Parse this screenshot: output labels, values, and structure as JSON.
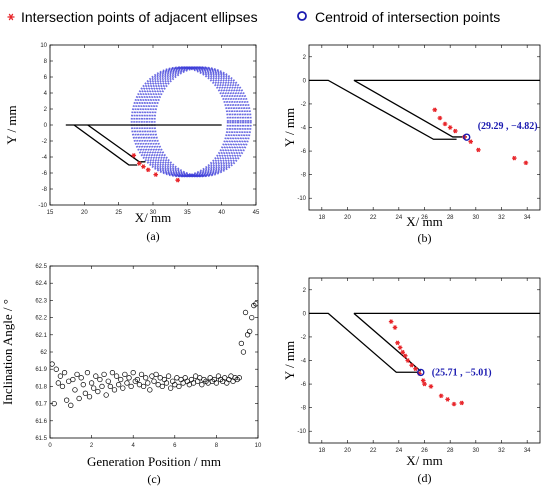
{
  "legend": {
    "left": {
      "marker": "*",
      "label": "Intersection points of adjacent ellipses",
      "color": "#e8262b"
    },
    "right": {
      "marker": "o",
      "label": "Centroid of intersection points",
      "color": "#1a1ab0"
    }
  },
  "colors": {
    "outline": "#000000",
    "ellipse": "#3c3cd8",
    "points": "#e8262b",
    "centroid": "#1a1ab0"
  },
  "chart_data": [
    {
      "id": "a",
      "type": "scatter",
      "panel_label": "(a)",
      "xlabel": "X/ mm",
      "ylabel": "Y / mm",
      "xlim": [
        15,
        45
      ],
      "ylim": [
        -10,
        10
      ],
      "xticks": [
        15,
        20,
        25,
        30,
        35,
        40,
        45
      ],
      "yticks": [
        -10,
        -8,
        -6,
        -4,
        -2,
        0,
        2,
        4,
        6,
        8,
        10
      ],
      "outline": [
        [
          {
            "x": 17.3,
            "y": 0
          },
          {
            "x": 40,
            "y": 0
          }
        ],
        [
          {
            "x": 18.5,
            "y": 0
          },
          {
            "x": 26.5,
            "y": -5
          },
          {
            "x": 27.7,
            "y": -5
          }
        ],
        [
          {
            "x": 20.5,
            "y": 0
          },
          {
            "x": 28,
            "y": -4.6
          },
          {
            "x": 28.9,
            "y": -4.6
          }
        ]
      ],
      "ellipse_family": {
        "count": 10,
        "center_x_start": 33.9,
        "center_x_step": 0.37,
        "center_y": 0.4,
        "rx": 7,
        "ry": 6.8
      },
      "points": [
        {
          "x": 27.2,
          "y": -3.8
        },
        {
          "x": 28.0,
          "y": -4.8
        },
        {
          "x": 28.6,
          "y": -5.2
        },
        {
          "x": 29.3,
          "y": -5.6
        },
        {
          "x": 30.4,
          "y": -6.2
        },
        {
          "x": 33.6,
          "y": -6.9
        }
      ]
    },
    {
      "id": "b",
      "type": "scatter",
      "panel_label": "(b)",
      "xlabel": "X/ mm",
      "ylabel": "Y / mm",
      "xlim": [
        17,
        35
      ],
      "ylim": [
        -11,
        3
      ],
      "xticks": [
        18,
        20,
        22,
        24,
        26,
        28,
        30,
        32,
        34
      ],
      "yticks": [
        -10,
        -8,
        -6,
        -4,
        -2,
        0,
        2
      ],
      "outline": [
        [
          {
            "x": 17,
            "y": 0
          },
          {
            "x": 18.5,
            "y": 0
          },
          {
            "x": 26.7,
            "y": -5
          },
          {
            "x": 28.5,
            "y": -5
          }
        ],
        [
          {
            "x": 20.5,
            "y": 0
          },
          {
            "x": 35,
            "y": 0
          }
        ],
        [
          {
            "x": 20.5,
            "y": 0
          },
          {
            "x": 28.2,
            "y": -4.8
          },
          {
            "x": 29.3,
            "y": -4.8
          }
        ]
      ],
      "points": [
        {
          "x": 26.8,
          "y": -2.5
        },
        {
          "x": 27.2,
          "y": -3.2
        },
        {
          "x": 27.6,
          "y": -3.7
        },
        {
          "x": 28.0,
          "y": -4.0
        },
        {
          "x": 28.4,
          "y": -4.3
        },
        {
          "x": 29.1,
          "y": -4.8
        },
        {
          "x": 29.6,
          "y": -5.2
        },
        {
          "x": 30.2,
          "y": -5.9
        },
        {
          "x": 33.0,
          "y": -6.6
        },
        {
          "x": 33.9,
          "y": -7.0
        }
      ],
      "centroid": {
        "x": 29.29,
        "y": -4.82
      },
      "annotation": "(29.29 , −4.82)"
    },
    {
      "id": "c",
      "type": "scatter",
      "panel_label": "(c)",
      "xlabel": "Generation Position / mm",
      "ylabel": "Inclination Angle / °",
      "xlim": [
        0,
        10
      ],
      "ylim": [
        61.5,
        62.5
      ],
      "xticks": [
        0,
        2,
        4,
        6,
        8,
        10
      ],
      "yticks": [
        61.5,
        61.6,
        61.7,
        61.8,
        61.9,
        62,
        62.1,
        62.2,
        62.3,
        62.4,
        62.5
      ],
      "x": [
        0.1,
        0.2,
        0.3,
        0.4,
        0.5,
        0.6,
        0.7,
        0.8,
        0.9,
        1.0,
        1.1,
        1.2,
        1.3,
        1.4,
        1.5,
        1.6,
        1.7,
        1.8,
        1.9,
        2.0,
        2.1,
        2.2,
        2.3,
        2.4,
        2.5,
        2.6,
        2.7,
        2.8,
        2.9,
        3.0,
        3.1,
        3.2,
        3.3,
        3.4,
        3.5,
        3.6,
        3.7,
        3.8,
        3.9,
        4.0,
        4.1,
        4.2,
        4.3,
        4.4,
        4.5,
        4.6,
        4.7,
        4.8,
        4.9,
        5.0,
        5.1,
        5.2,
        5.3,
        5.4,
        5.5,
        5.6,
        5.7,
        5.8,
        5.9,
        6.0,
        6.1,
        6.2,
        6.3,
        6.4,
        6.5,
        6.6,
        6.7,
        6.8,
        6.9,
        7.0,
        7.1,
        7.2,
        7.3,
        7.4,
        7.5,
        7.6,
        7.7,
        7.8,
        7.9,
        8.0,
        8.1,
        8.2,
        8.3,
        8.4,
        8.5,
        8.6,
        8.7,
        8.8,
        8.9,
        9.0,
        9.1,
        9.2,
        9.3,
        9.4,
        9.5,
        9.6,
        9.7,
        9.8,
        9.9
      ],
      "y": [
        61.93,
        61.7,
        61.9,
        61.82,
        61.86,
        61.8,
        61.88,
        61.72,
        61.83,
        61.69,
        61.84,
        61.78,
        61.87,
        61.73,
        61.85,
        61.81,
        61.76,
        61.88,
        61.74,
        61.82,
        61.79,
        61.86,
        61.77,
        61.84,
        61.8,
        61.87,
        61.75,
        61.83,
        61.8,
        61.88,
        61.78,
        61.86,
        61.81,
        61.84,
        61.79,
        61.87,
        61.82,
        61.85,
        61.8,
        61.88,
        61.83,
        61.84,
        61.81,
        61.87,
        61.8,
        61.85,
        61.82,
        61.78,
        61.86,
        61.83,
        61.87,
        61.81,
        61.85,
        61.8,
        61.84,
        61.82,
        61.86,
        61.79,
        61.83,
        61.81,
        61.85,
        61.8,
        61.84,
        61.82,
        61.85,
        61.83,
        61.81,
        61.84,
        61.82,
        61.86,
        61.83,
        61.85,
        61.81,
        61.84,
        61.83,
        61.82,
        61.85,
        61.83,
        61.84,
        61.82,
        61.86,
        61.84,
        61.83,
        61.85,
        61.82,
        61.84,
        61.86,
        61.83,
        61.85,
        61.84,
        61.85,
        62.05,
        62.0,
        62.23,
        62.1,
        62.12,
        62.2,
        62.27,
        62.28
      ],
      "marker": "open-circle"
    },
    {
      "id": "d",
      "type": "scatter",
      "panel_label": "(d)",
      "xlabel": "X/ mm",
      "ylabel": "Y / mm",
      "xlim": [
        17,
        35
      ],
      "ylim": [
        -11,
        3
      ],
      "xticks": [
        18,
        20,
        22,
        24,
        26,
        28,
        30,
        32,
        34
      ],
      "yticks": [
        -10,
        -8,
        -6,
        -4,
        -2,
        0,
        2
      ],
      "outline": [
        [
          {
            "x": 17,
            "y": 0
          },
          {
            "x": 18.5,
            "y": 0
          },
          {
            "x": 23.8,
            "y": -5
          },
          {
            "x": 25.6,
            "y": -5
          }
        ],
        [
          {
            "x": 20.5,
            "y": 0
          },
          {
            "x": 35,
            "y": 0
          }
        ],
        [
          {
            "x": 20.5,
            "y": 0
          },
          {
            "x": 25.7,
            "y": -4.9
          }
        ]
      ],
      "points": [
        {
          "x": 23.4,
          "y": -0.7
        },
        {
          "x": 23.7,
          "y": -1.2
        },
        {
          "x": 23.9,
          "y": -2.5
        },
        {
          "x": 24.1,
          "y": -2.9
        },
        {
          "x": 24.3,
          "y": -3.3
        },
        {
          "x": 24.5,
          "y": -3.6
        },
        {
          "x": 24.7,
          "y": -4.0
        },
        {
          "x": 25.0,
          "y": -4.4
        },
        {
          "x": 25.3,
          "y": -4.7
        },
        {
          "x": 25.6,
          "y": -5.1
        },
        {
          "x": 25.9,
          "y": -5.7
        },
        {
          "x": 26.0,
          "y": -6.0
        },
        {
          "x": 26.5,
          "y": -6.2
        },
        {
          "x": 27.3,
          "y": -7.0
        },
        {
          "x": 27.8,
          "y": -7.3
        },
        {
          "x": 28.3,
          "y": -7.7
        },
        {
          "x": 28.9,
          "y": -7.6
        }
      ],
      "centroid": {
        "x": 25.71,
        "y": -5.01
      },
      "annotation": "(25.71 , −5.01)"
    }
  ]
}
